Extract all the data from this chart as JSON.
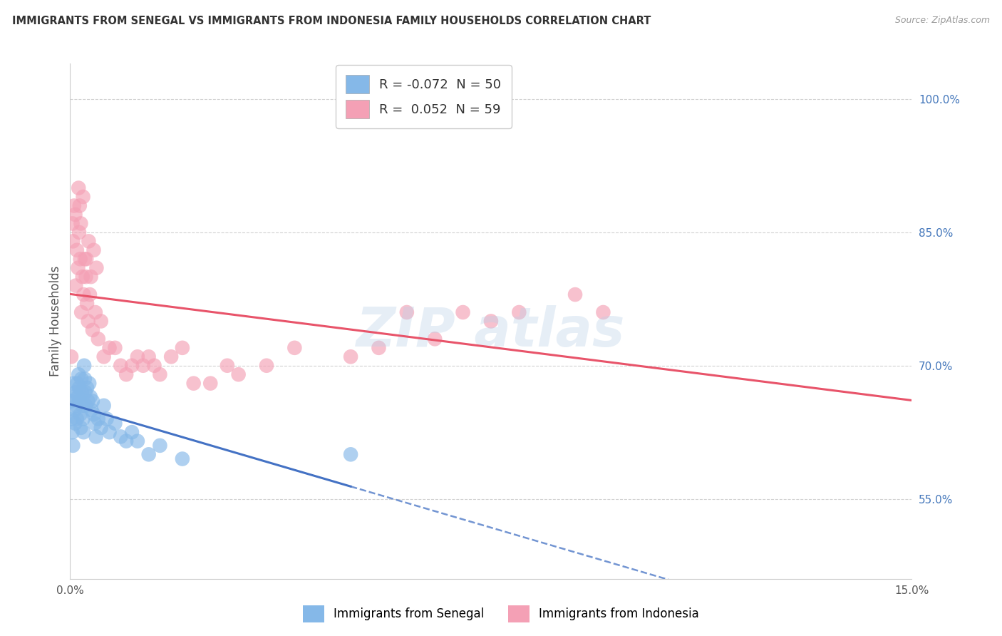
{
  "title": "IMMIGRANTS FROM SENEGAL VS IMMIGRANTS FROM INDONESIA FAMILY HOUSEHOLDS CORRELATION CHART",
  "source": "Source: ZipAtlas.com",
  "ylabel": "Family Households",
  "xlim": [
    0.0,
    0.15
  ],
  "ylim": [
    0.46,
    1.04
  ],
  "xticks": [
    0.0,
    0.15
  ],
  "yticks": [
    0.55,
    0.7,
    0.85,
    1.0
  ],
  "senegal_label": "Immigrants from Senegal",
  "indonesia_label": "Immigrants from Indonesia",
  "senegal_R": -0.072,
  "senegal_N": 50,
  "indonesia_R": 0.052,
  "indonesia_N": 59,
  "senegal_dot_color": "#85b8e8",
  "indonesia_dot_color": "#f4a0b5",
  "senegal_line_color": "#4472c4",
  "indonesia_line_color": "#e8546a",
  "background_color": "#ffffff",
  "grid_color": "#cccccc",
  "senegal_x": [
    0.0002,
    0.0003,
    0.0004,
    0.0005,
    0.0006,
    0.0007,
    0.0008,
    0.0009,
    0.001,
    0.0011,
    0.0012,
    0.0013,
    0.0014,
    0.0015,
    0.0016,
    0.0017,
    0.0018,
    0.0019,
    0.002,
    0.0021,
    0.0022,
    0.0023,
    0.0024,
    0.0025,
    0.0026,
    0.0027,
    0.0028,
    0.003,
    0.0032,
    0.0034,
    0.0036,
    0.0038,
    0.004,
    0.0042,
    0.0044,
    0.0046,
    0.005,
    0.0055,
    0.006,
    0.0065,
    0.007,
    0.008,
    0.009,
    0.01,
    0.011,
    0.012,
    0.014,
    0.016,
    0.02,
    0.05
  ],
  "senegal_y": [
    0.66,
    0.64,
    0.625,
    0.61,
    0.68,
    0.665,
    0.65,
    0.635,
    0.67,
    0.655,
    0.64,
    0.68,
    0.665,
    0.69,
    0.675,
    0.66,
    0.645,
    0.63,
    0.685,
    0.67,
    0.655,
    0.64,
    0.625,
    0.7,
    0.685,
    0.67,
    0.655,
    0.675,
    0.66,
    0.68,
    0.665,
    0.65,
    0.66,
    0.645,
    0.635,
    0.62,
    0.64,
    0.63,
    0.655,
    0.64,
    0.625,
    0.635,
    0.62,
    0.615,
    0.625,
    0.615,
    0.6,
    0.61,
    0.595,
    0.6
  ],
  "indonesia_x": [
    0.0002,
    0.0004,
    0.0005,
    0.0007,
    0.0009,
    0.001,
    0.0012,
    0.0014,
    0.0016,
    0.0018,
    0.002,
    0.0022,
    0.0024,
    0.0026,
    0.0028,
    0.003,
    0.0032,
    0.0035,
    0.004,
    0.0045,
    0.005,
    0.0055,
    0.006,
    0.007,
    0.008,
    0.009,
    0.01,
    0.011,
    0.012,
    0.013,
    0.014,
    0.015,
    0.016,
    0.018,
    0.02,
    0.022,
    0.025,
    0.028,
    0.03,
    0.035,
    0.04,
    0.05,
    0.055,
    0.06,
    0.065,
    0.07,
    0.075,
    0.08,
    0.09,
    0.095,
    0.0015,
    0.0017,
    0.0019,
    0.0023,
    0.0029,
    0.0033,
    0.0037,
    0.0042,
    0.0047
  ],
  "indonesia_y": [
    0.71,
    0.86,
    0.84,
    0.88,
    0.87,
    0.79,
    0.83,
    0.81,
    0.85,
    0.82,
    0.76,
    0.8,
    0.78,
    0.82,
    0.8,
    0.77,
    0.75,
    0.78,
    0.74,
    0.76,
    0.73,
    0.75,
    0.71,
    0.72,
    0.72,
    0.7,
    0.69,
    0.7,
    0.71,
    0.7,
    0.71,
    0.7,
    0.69,
    0.71,
    0.72,
    0.68,
    0.68,
    0.7,
    0.69,
    0.7,
    0.72,
    0.71,
    0.72,
    0.76,
    0.73,
    0.76,
    0.75,
    0.76,
    0.78,
    0.76,
    0.9,
    0.88,
    0.86,
    0.89,
    0.82,
    0.84,
    0.8,
    0.83,
    0.81
  ]
}
